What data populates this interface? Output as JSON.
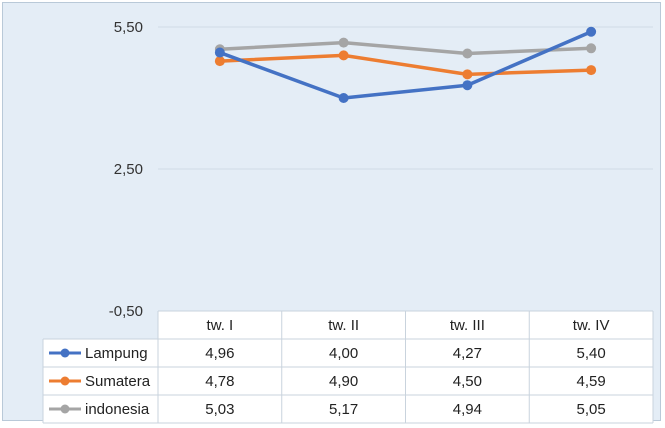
{
  "chart_data": {
    "type": "line",
    "categories": [
      "tw. I",
      "tw. II",
      "tw. III",
      "tw. IV"
    ],
    "y_ticks": [
      "5,50",
      "2,50",
      "-0,50"
    ],
    "ylim": [
      -0.5,
      5.5
    ],
    "grid": true,
    "legend": "data-table-left",
    "series": [
      {
        "name": "Lampung",
        "color": "#4472c4",
        "values": [
          4.96,
          4.0,
          4.27,
          5.4
        ],
        "labels": [
          "4,96",
          "4,00",
          "4,27",
          "5,40"
        ]
      },
      {
        "name": "Sumatera",
        "color": "#ed7d31",
        "values": [
          4.78,
          4.9,
          4.5,
          4.59
        ],
        "labels": [
          "4,78",
          "4,90",
          "4,50",
          "4,59"
        ]
      },
      {
        "name": "indonesia",
        "color": "#a5a5a5",
        "values": [
          5.03,
          5.17,
          4.94,
          5.05
        ],
        "labels": [
          "5,03",
          "5,17",
          "4,94",
          "5,05"
        ]
      }
    ]
  }
}
